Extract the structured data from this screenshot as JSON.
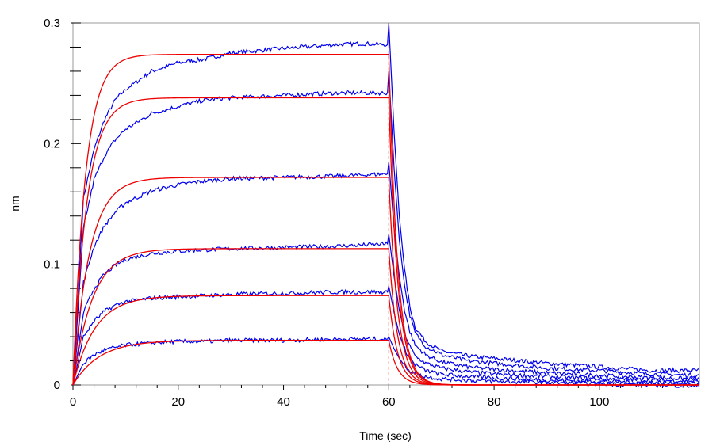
{
  "chart_data": {
    "type": "line",
    "xlabel": "Time (sec)",
    "ylabel": "nm",
    "xlim": [
      0,
      119
    ],
    "ylim": [
      0,
      0.3
    ],
    "x_ticks": [
      "0",
      "20",
      "40",
      "60",
      "80",
      "100"
    ],
    "y_ticks": [
      "0",
      "0.1",
      "0.2",
      "0.3"
    ],
    "grid": false,
    "dissociation_start": 60,
    "colors": {
      "measured": "#0000ee",
      "fit": "#ee0000",
      "marker": "#ee0000"
    },
    "series": [
      {
        "kind": "measured",
        "x": [
          0,
          2,
          4,
          6,
          8,
          10,
          15,
          20,
          25,
          30,
          40,
          50,
          55,
          59.8,
          60,
          61,
          62,
          63,
          64,
          65,
          67,
          70,
          75,
          80,
          90,
          100,
          110,
          119
        ],
        "values": [
          0.0,
          0.155,
          0.195,
          0.22,
          0.236,
          0.245,
          0.26,
          0.267,
          0.27,
          0.275,
          0.279,
          0.282,
          0.283,
          0.282,
          0.3,
          0.21,
          0.14,
          0.095,
          0.065,
          0.048,
          0.036,
          0.028,
          0.024,
          0.022,
          0.018,
          0.015,
          0.012,
          0.012
        ]
      },
      {
        "kind": "measured",
        "x": [
          0,
          2,
          4,
          6,
          8,
          10,
          15,
          20,
          25,
          30,
          40,
          50,
          55,
          59.8,
          60,
          61,
          62,
          63,
          64,
          65,
          67,
          70,
          75,
          80,
          90,
          100,
          110,
          119
        ],
        "values": [
          0.0,
          0.13,
          0.17,
          0.19,
          0.203,
          0.212,
          0.225,
          0.231,
          0.236,
          0.238,
          0.24,
          0.242,
          0.242,
          0.242,
          0.26,
          0.18,
          0.12,
          0.082,
          0.058,
          0.043,
          0.032,
          0.025,
          0.02,
          0.018,
          0.014,
          0.012,
          0.009,
          0.008
        ]
      },
      {
        "kind": "measured",
        "x": [
          0,
          2,
          4,
          6,
          8,
          10,
          15,
          20,
          25,
          30,
          40,
          50,
          55,
          59.8,
          60,
          61,
          62,
          63,
          64,
          65,
          67,
          70,
          75,
          80,
          90,
          100,
          110,
          119
        ],
        "values": [
          0.0,
          0.085,
          0.115,
          0.132,
          0.143,
          0.151,
          0.161,
          0.166,
          0.169,
          0.171,
          0.172,
          0.173,
          0.174,
          0.175,
          0.185,
          0.13,
          0.09,
          0.062,
          0.044,
          0.033,
          0.025,
          0.019,
          0.015,
          0.013,
          0.01,
          0.008,
          0.006,
          0.005
        ]
      },
      {
        "kind": "measured",
        "x": [
          0,
          2,
          4,
          6,
          8,
          10,
          15,
          20,
          25,
          30,
          40,
          50,
          55,
          59.8,
          60,
          61,
          62,
          63,
          64,
          65,
          67,
          70,
          75,
          80,
          90,
          100,
          110,
          119
        ],
        "values": [
          0.0,
          0.06,
          0.08,
          0.092,
          0.099,
          0.104,
          0.109,
          0.111,
          0.112,
          0.113,
          0.114,
          0.115,
          0.116,
          0.117,
          0.125,
          0.09,
          0.062,
          0.043,
          0.032,
          0.024,
          0.018,
          0.014,
          0.011,
          0.009,
          0.007,
          0.005,
          0.004,
          0.003
        ]
      },
      {
        "kind": "measured",
        "x": [
          0,
          2,
          4,
          6,
          8,
          10,
          15,
          20,
          25,
          30,
          40,
          50,
          55,
          59.8,
          60,
          61,
          62,
          63,
          64,
          65,
          67,
          70,
          75,
          80,
          90,
          100,
          110,
          119
        ],
        "values": [
          0.0,
          0.04,
          0.053,
          0.061,
          0.066,
          0.069,
          0.072,
          0.073,
          0.074,
          0.075,
          0.076,
          0.077,
          0.077,
          0.077,
          0.082,
          0.06,
          0.042,
          0.03,
          0.022,
          0.017,
          0.012,
          0.009,
          0.007,
          0.006,
          0.004,
          0.003,
          0.002,
          0.001
        ]
      },
      {
        "kind": "measured",
        "x": [
          0,
          2,
          4,
          6,
          8,
          10,
          15,
          20,
          25,
          30,
          40,
          50,
          55,
          59.8,
          60,
          61,
          62,
          63,
          64,
          65,
          67,
          70,
          75,
          80,
          90,
          100,
          110,
          119
        ],
        "values": [
          0.0,
          0.018,
          0.025,
          0.029,
          0.031,
          0.033,
          0.035,
          0.036,
          0.036,
          0.037,
          0.037,
          0.038,
          0.038,
          0.038,
          0.04,
          0.03,
          0.022,
          0.016,
          0.012,
          0.009,
          0.007,
          0.005,
          0.004,
          0.003,
          0.002,
          0.001,
          0.0,
          -0.001
        ]
      },
      {
        "kind": "fit",
        "plateau": 0.274,
        "kon": 0.42,
        "koff": 0.6,
        "end": 0.0
      },
      {
        "kind": "fit",
        "plateau": 0.238,
        "kon": 0.38,
        "koff": 0.6,
        "end": 0.0
      },
      {
        "kind": "fit",
        "plateau": 0.172,
        "kon": 0.32,
        "koff": 0.6,
        "end": 0.0
      },
      {
        "kind": "fit",
        "plateau": 0.113,
        "kon": 0.27,
        "koff": 0.6,
        "end": 0.0
      },
      {
        "kind": "fit",
        "plateau": 0.074,
        "kon": 0.24,
        "koff": 0.6,
        "end": 0.0
      },
      {
        "kind": "fit",
        "plateau": 0.037,
        "kon": 0.2,
        "koff": 0.6,
        "end": 0.0
      }
    ]
  }
}
